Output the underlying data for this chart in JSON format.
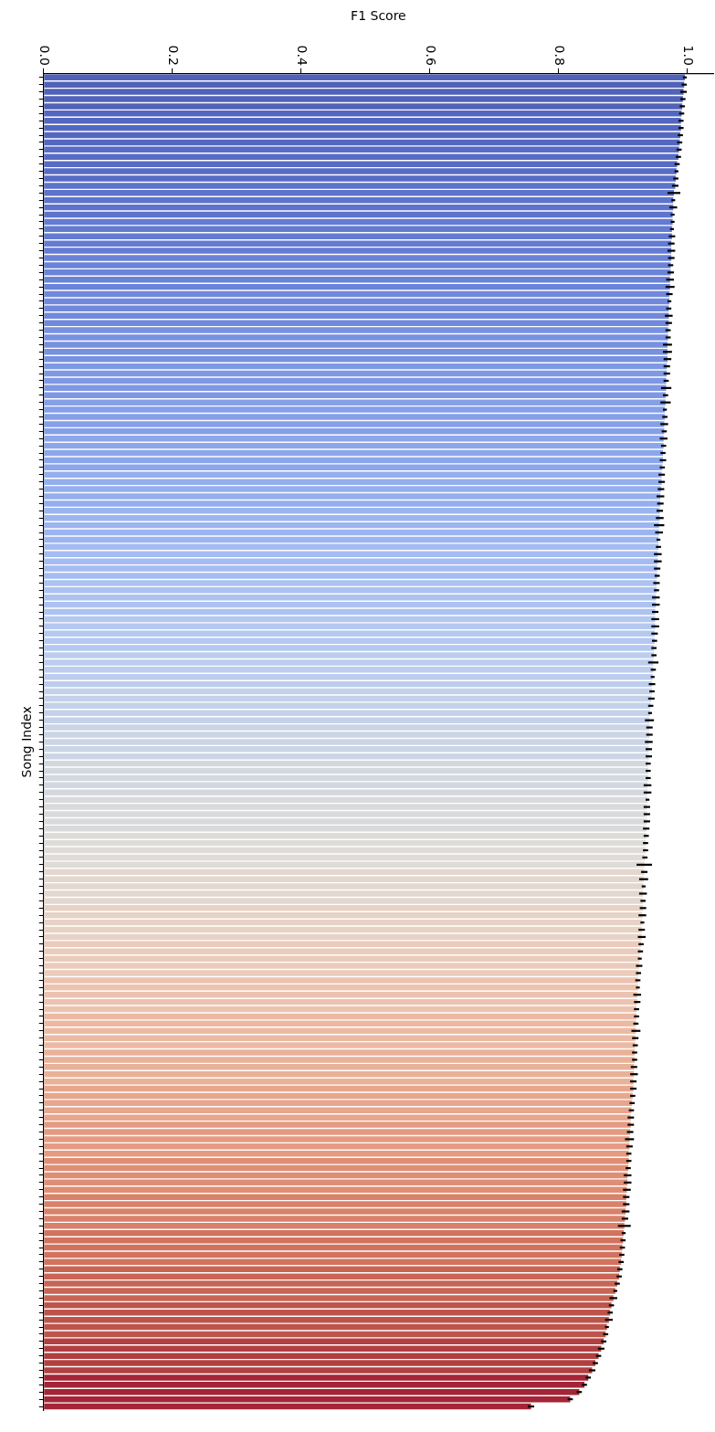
{
  "chart_data": {
    "type": "bar",
    "orientation": "horizontal",
    "xlabel": "F1 Score",
    "ylabel": "Song Index",
    "tick_labels": "x",
    "grid": false,
    "xlim": [
      0,
      1.04
    ],
    "xticks": [
      {
        "value": 0,
        "label": "0.0"
      },
      0.2,
      0.4,
      0.6,
      0.8,
      {
        "value": 1,
        "label": "1.0"
      }
    ],
    "categories": [
      null,
      null,
      null,
      null,
      null,
      null,
      null,
      null,
      null,
      null,
      null,
      null,
      null,
      null,
      null,
      null,
      null,
      null,
      null,
      null,
      null,
      null,
      null,
      null,
      null,
      null,
      null,
      null,
      null,
      null,
      null,
      null,
      null,
      null,
      null,
      null,
      null,
      null,
      null,
      null,
      null,
      null,
      null,
      null,
      null,
      null,
      null,
      null,
      null,
      null,
      null,
      null,
      null,
      null,
      null,
      null,
      null,
      null,
      null,
      null,
      null,
      null,
      null,
      null,
      null,
      null,
      null,
      null,
      null,
      null,
      null,
      null,
      null,
      null,
      null,
      null,
      null,
      null,
      null,
      null,
      null,
      null,
      null,
      null,
      null,
      null,
      null,
      null,
      null,
      null,
      null,
      null,
      null,
      null,
      null,
      null,
      null,
      null,
      null,
      null,
      null,
      null,
      null,
      null,
      null,
      null,
      null,
      null,
      null,
      null,
      null,
      null,
      null,
      null,
      null,
      null,
      null,
      null,
      null,
      null,
      null,
      null,
      null,
      null,
      null,
      null,
      null,
      null,
      null,
      null,
      null,
      null,
      null,
      null,
      null,
      null,
      null,
      null,
      null,
      null,
      null,
      null,
      null,
      null,
      null,
      null,
      null,
      null,
      null,
      null,
      null,
      null,
      null,
      null,
      null,
      null,
      null,
      null,
      null,
      null,
      null,
      null,
      null,
      null,
      null,
      null,
      null,
      null,
      null,
      null,
      null,
      null,
      null,
      null,
      null,
      null,
      null,
      null,
      null,
      null,
      null,
      null,
      null,
      null,
      null
    ],
    "values": [
      0.996,
      0.995,
      0.994,
      0.993,
      0.992,
      0.991,
      0.99,
      0.99,
      0.989,
      0.988,
      0.987,
      0.986,
      0.984,
      0.983,
      0.982,
      0.981,
      0.979,
      0.978,
      0.978,
      0.977,
      0.977,
      0.976,
      0.976,
      0.975,
      0.975,
      0.975,
      0.974,
      0.974,
      0.973,
      0.973,
      0.972,
      0.972,
      0.971,
      0.971,
      0.971,
      0.97,
      0.97,
      0.969,
      0.969,
      0.969,
      0.968,
      0.968,
      0.967,
      0.967,
      0.966,
      0.966,
      0.965,
      0.965,
      0.964,
      0.964,
      0.963,
      0.963,
      0.962,
      0.962,
      0.961,
      0.96,
      0.96,
      0.959,
      0.958,
      0.958,
      0.957,
      0.957,
      0.956,
      0.956,
      0.955,
      0.955,
      0.954,
      0.954,
      0.953,
      0.953,
      0.952,
      0.952,
      0.951,
      0.951,
      0.95,
      0.95,
      0.95,
      0.949,
      0.949,
      0.948,
      0.948,
      0.947,
      0.947,
      0.946,
      0.945,
      0.945,
      0.944,
      0.943,
      0.942,
      0.941,
      0.941,
      0.941,
      0.94,
      0.94,
      0.94,
      0.939,
      0.939,
      0.939,
      0.938,
      0.938,
      0.938,
      0.937,
      0.937,
      0.937,
      0.936,
      0.936,
      0.935,
      0.935,
      0.934,
      0.933,
      0.933,
      0.932,
      0.932,
      0.931,
      0.931,
      0.931,
      0.93,
      0.93,
      0.929,
      0.929,
      0.928,
      0.927,
      0.926,
      0.925,
      0.924,
      0.923,
      0.923,
      0.922,
      0.922,
      0.921,
      0.921,
      0.92,
      0.92,
      0.919,
      0.919,
      0.918,
      0.918,
      0.917,
      0.917,
      0.916,
      0.916,
      0.915,
      0.914,
      0.913,
      0.912,
      0.912,
      0.911,
      0.91,
      0.91,
      0.909,
      0.909,
      0.908,
      0.907,
      0.907,
      0.906,
      0.905,
      0.905,
      0.904,
      0.903,
      0.902,
      0.901,
      0.9,
      0.899,
      0.898,
      0.897,
      0.895,
      0.894,
      0.891,
      0.888,
      0.885,
      0.882,
      0.88,
      0.878,
      0.875,
      0.873,
      0.87,
      0.866,
      0.862,
      0.857,
      0.852,
      0.846,
      0.84,
      0.832,
      0.818,
      0.757
    ],
    "errors": [
      0.003,
      0.004,
      0.005,
      0.004,
      0.004,
      0.004,
      0.004,
      0.004,
      0.004,
      0.004,
      0.004,
      0.004,
      0.004,
      0.003,
      0.004,
      0.005,
      0.01,
      0.003,
      0.006,
      0.003,
      0.003,
      0.003,
      0.005,
      0.005,
      0.006,
      0.005,
      0.004,
      0.005,
      0.006,
      0.007,
      0.005,
      0.003,
      0.004,
      0.006,
      0.005,
      0.004,
      0.004,
      0.007,
      0.007,
      0.006,
      0.005,
      0.005,
      0.004,
      0.008,
      0.004,
      0.008,
      0.003,
      0.004,
      0.006,
      0.004,
      0.006,
      0.004,
      0.004,
      0.005,
      0.004,
      0.005,
      0.005,
      0.005,
      0.006,
      0.005,
      0.005,
      0.006,
      0.008,
      0.006,
      0.003,
      0.004,
      0.006,
      0.006,
      0.005,
      0.004,
      0.005,
      0.004,
      0.006,
      0.006,
      0.005,
      0.006,
      0.006,
      0.005,
      0.004,
      0.004,
      0.004,
      0.008,
      0.004,
      0.003,
      0.005,
      0.004,
      0.005,
      0.004,
      0.003,
      0.007,
      0.005,
      0.005,
      0.006,
      0.005,
      0.005,
      0.004,
      0.004,
      0.004,
      0.006,
      0.006,
      0.003,
      0.005,
      0.005,
      0.005,
      0.005,
      0.004,
      0.004,
      0.004,
      0.004,
      0.012,
      0.005,
      0.007,
      0.003,
      0.006,
      0.004,
      0.005,
      0.006,
      0.003,
      0.005,
      0.006,
      0.004,
      0.004,
      0.003,
      0.005,
      0.004,
      0.004,
      0.003,
      0.006,
      0.005,
      0.004,
      0.004,
      0.004,
      0.007,
      0.005,
      0.004,
      0.004,
      0.004,
      0.005,
      0.006,
      0.005,
      0.005,
      0.004,
      0.004,
      0.004,
      0.005,
      0.005,
      0.005,
      0.007,
      0.005,
      0.004,
      0.004,
      0.004,
      0.006,
      0.006,
      0.006,
      0.005,
      0.005,
      0.006,
      0.005,
      0.01,
      0.003,
      0.004,
      0.004,
      0.004,
      0.004,
      0.004,
      0.004,
      0.004,
      0.003,
      0.006,
      0.004,
      0.004,
      0.006,
      0.003,
      0.004,
      0.004,
      0.005,
      0.004,
      0.004,
      0.005,
      0.004,
      0.004,
      0.004,
      0.004,
      0.005
    ],
    "colors": [
      "#5162b8",
      "#5162b8",
      "#5162b8",
      "#5162b8",
      "#5162b8",
      "#5467c0",
      "#5467c0",
      "#5467c0",
      "#5467c0",
      "#5467c0",
      "#586cc6",
      "#586cc6",
      "#586cc6",
      "#586cc6",
      "#586cc6",
      "#5d73cc",
      "#5d73cc",
      "#5d73cc",
      "#5d73cc",
      "#5d73cc",
      "#637bd2",
      "#637bd2",
      "#637bd2",
      "#637bd2",
      "#637bd2",
      "#6a83d8",
      "#6a83d8",
      "#6a83d8",
      "#6a83d8",
      "#6a83d8",
      "#7089dc",
      "#7089dc",
      "#7089dc",
      "#7089dc",
      "#7089dc",
      "#7791e0",
      "#7791e0",
      "#7791e0",
      "#7791e0",
      "#7791e0",
      "#7e98e4",
      "#7e98e4",
      "#7e98e4",
      "#7e98e4",
      "#7e98e4",
      "#859fe8",
      "#859fe8",
      "#859fe8",
      "#859fe8",
      "#859fe8",
      "#8ca6ec",
      "#8ca6ec",
      "#8ca6ec",
      "#8ca6ec",
      "#8ca6ec",
      "#94aeee",
      "#94aeee",
      "#94aeee",
      "#94aeee",
      "#94aeee",
      "#9cb5f0",
      "#9cb5f0",
      "#9cb5f0",
      "#9cb5f0",
      "#9cb5f0",
      "#a4bcf1",
      "#a4bcf1",
      "#a4bcf1",
      "#a4bcf1",
      "#a4bcf1",
      "#acc2f1",
      "#acc2f1",
      "#acc2f1",
      "#acc2f1",
      "#acc2f1",
      "#b4c8f0",
      "#b4c8f0",
      "#b4c8f0",
      "#b4c8f0",
      "#b4c8f0",
      "#bccdee",
      "#bccdee",
      "#bccdee",
      "#bccdee",
      "#bccdee",
      "#c4d1ea",
      "#c4d1ea",
      "#c4d1ea",
      "#c4d1ea",
      "#c4d1ea",
      "#ccd5e5",
      "#ccd5e5",
      "#ccd5e5",
      "#ccd5e5",
      "#ccd5e5",
      "#d3d8e0",
      "#d3d8e0",
      "#d3d8e0",
      "#d3d8e0",
      "#d3d8e0",
      "#d9dadb",
      "#d9dadb",
      "#d9dadb",
      "#d9dadb",
      "#d9dadb",
      "#dedbd8",
      "#dedbd8",
      "#dedbd8",
      "#dedbd8",
      "#dedbd8",
      "#e3d7cf",
      "#e3d7cf",
      "#e3d7cf",
      "#e3d7cf",
      "#e3d7cf",
      "#e7d2c6",
      "#e7d2c6",
      "#e7d2c6",
      "#e7d2c6",
      "#e7d2c6",
      "#ebcbbb",
      "#ebcbbb",
      "#ebcbbb",
      "#ebcbbb",
      "#ebcbbb",
      "#ecc3b0",
      "#ecc3b0",
      "#ecc3b0",
      "#ecc3b0",
      "#ecc3b0",
      "#ecbaa4",
      "#ecbaa4",
      "#ecbaa4",
      "#ecbaa4",
      "#ecbaa4",
      "#eab199",
      "#eab199",
      "#eab199",
      "#eab199",
      "#eab199",
      "#e7a68d",
      "#e7a68d",
      "#e7a68d",
      "#e7a68d",
      "#e7a68d",
      "#e49b81",
      "#e49b81",
      "#e49b81",
      "#e49b81",
      "#e49b81",
      "#df8e75",
      "#df8e75",
      "#df8e75",
      "#df8e75",
      "#df8e75",
      "#d9816a",
      "#d9816a",
      "#d9816a",
      "#d9816a",
      "#d9816a",
      "#d1735f",
      "#d1735f",
      "#d1735f",
      "#d1735f",
      "#d1735f",
      "#c86555",
      "#c86555",
      "#c86555",
      "#c86555",
      "#c86555",
      "#bd544b",
      "#bd544b",
      "#bd544b",
      "#bd544b",
      "#bd544b",
      "#b24040",
      "#b24040",
      "#b24040",
      "#b24040",
      "#b24040",
      "#a32536",
      "#a32536",
      "#a32536",
      "#a32536",
      "#a32536"
    ]
  }
}
